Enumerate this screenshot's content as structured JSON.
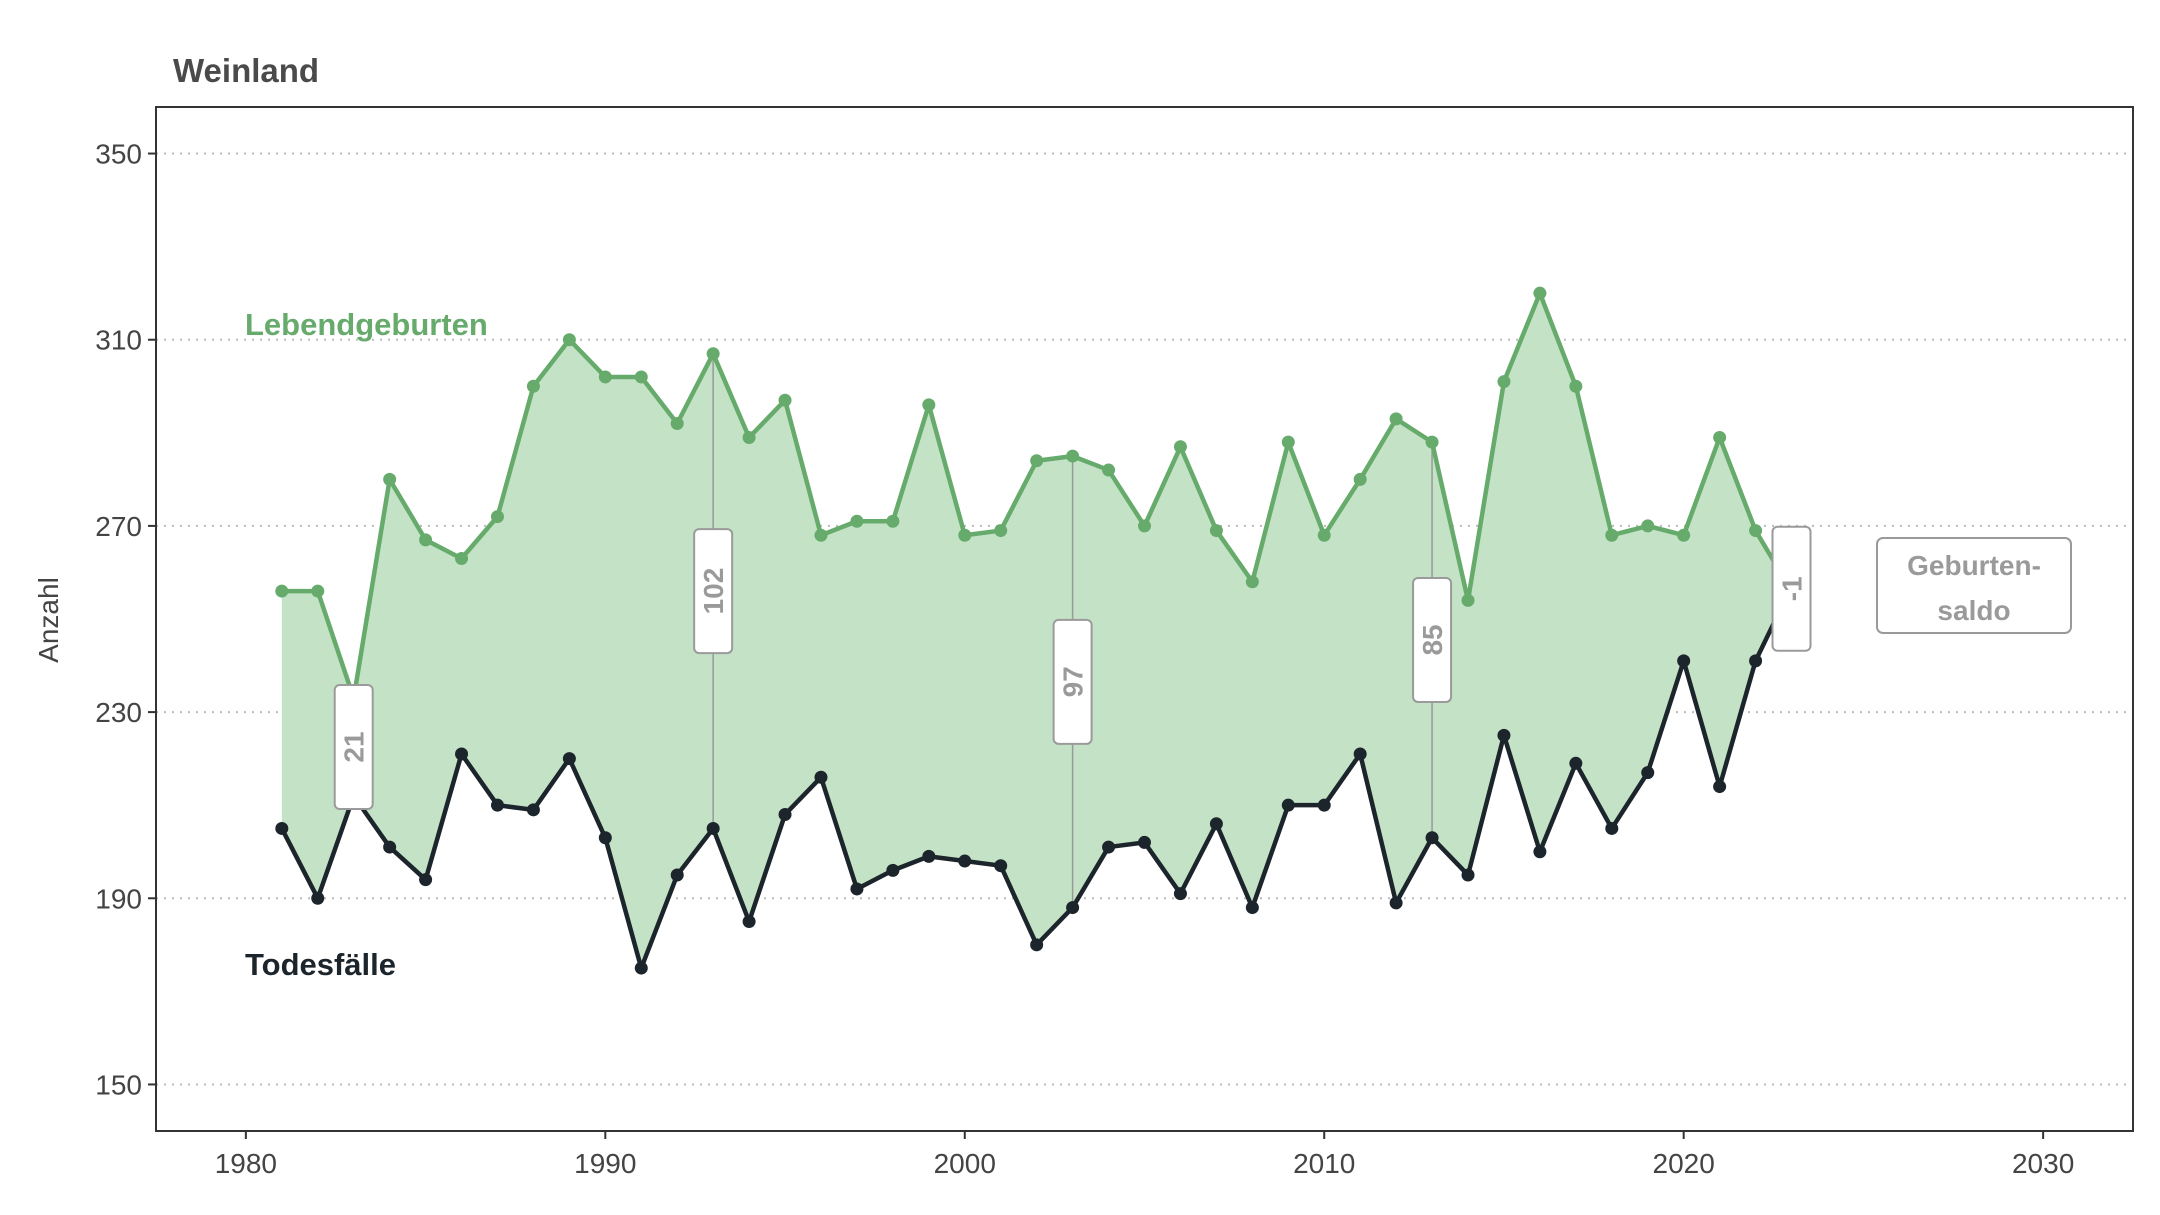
{
  "chart_data": {
    "type": "line",
    "title": "Weinland",
    "xlabel": "",
    "ylabel": "Anzahl",
    "xlim": [
      1977.5,
      2032.5
    ],
    "ylim": [
      140,
      360
    ],
    "x_ticks": [
      1980,
      1990,
      2000,
      2010,
      2020,
      2030
    ],
    "y_ticks": [
      150,
      190,
      230,
      270,
      310,
      350
    ],
    "grid": "horizontal dotted",
    "x": [
      1981,
      1982,
      1983,
      1984,
      1985,
      1986,
      1987,
      1988,
      1989,
      1990,
      1991,
      1992,
      1993,
      1994,
      1995,
      1996,
      1997,
      1998,
      1999,
      2000,
      2001,
      2002,
      2003,
      2004,
      2005,
      2006,
      2007,
      2008,
      2009,
      2010,
      2011,
      2012,
      2013,
      2014,
      2015,
      2016,
      2017,
      2018,
      2019,
      2020,
      2021,
      2022,
      2023
    ],
    "series": [
      {
        "name": "Lebendgeburten",
        "color": "#66ab6c",
        "values": [
          256,
          256,
          233,
          280,
          267,
          263,
          272,
          300,
          310,
          302,
          302,
          292,
          307,
          289,
          297,
          268,
          271,
          271,
          296,
          268,
          269,
          284,
          285,
          282,
          270,
          287,
          269,
          258,
          288,
          268,
          280,
          293,
          288,
          254,
          301,
          320,
          300,
          268,
          270,
          268,
          289,
          269,
          256
        ]
      },
      {
        "name": "Todesfälle",
        "color": "#1c252c",
        "values": [
          205,
          190,
          212,
          201,
          194,
          221,
          210,
          209,
          220,
          203,
          175,
          195,
          205,
          185,
          208,
          216,
          192,
          196,
          199,
          198,
          197,
          180,
          188,
          201,
          202,
          191,
          206,
          188,
          210,
          210,
          221,
          189,
          203,
          195,
          225,
          200,
          219,
          205,
          217,
          241,
          214,
          241,
          257
        ]
      }
    ],
    "fill_between_color": "#c4e3c6",
    "saldo_labels": [
      {
        "year": 1983,
        "text": "21"
      },
      {
        "year": 1993,
        "text": "102"
      },
      {
        "year": 2003,
        "text": "97"
      },
      {
        "year": 2013,
        "text": "85"
      },
      {
        "year": 2023,
        "text": "-1"
      }
    ],
    "legend_box": {
      "line1": "Geburten-",
      "line2": "saldo"
    }
  }
}
